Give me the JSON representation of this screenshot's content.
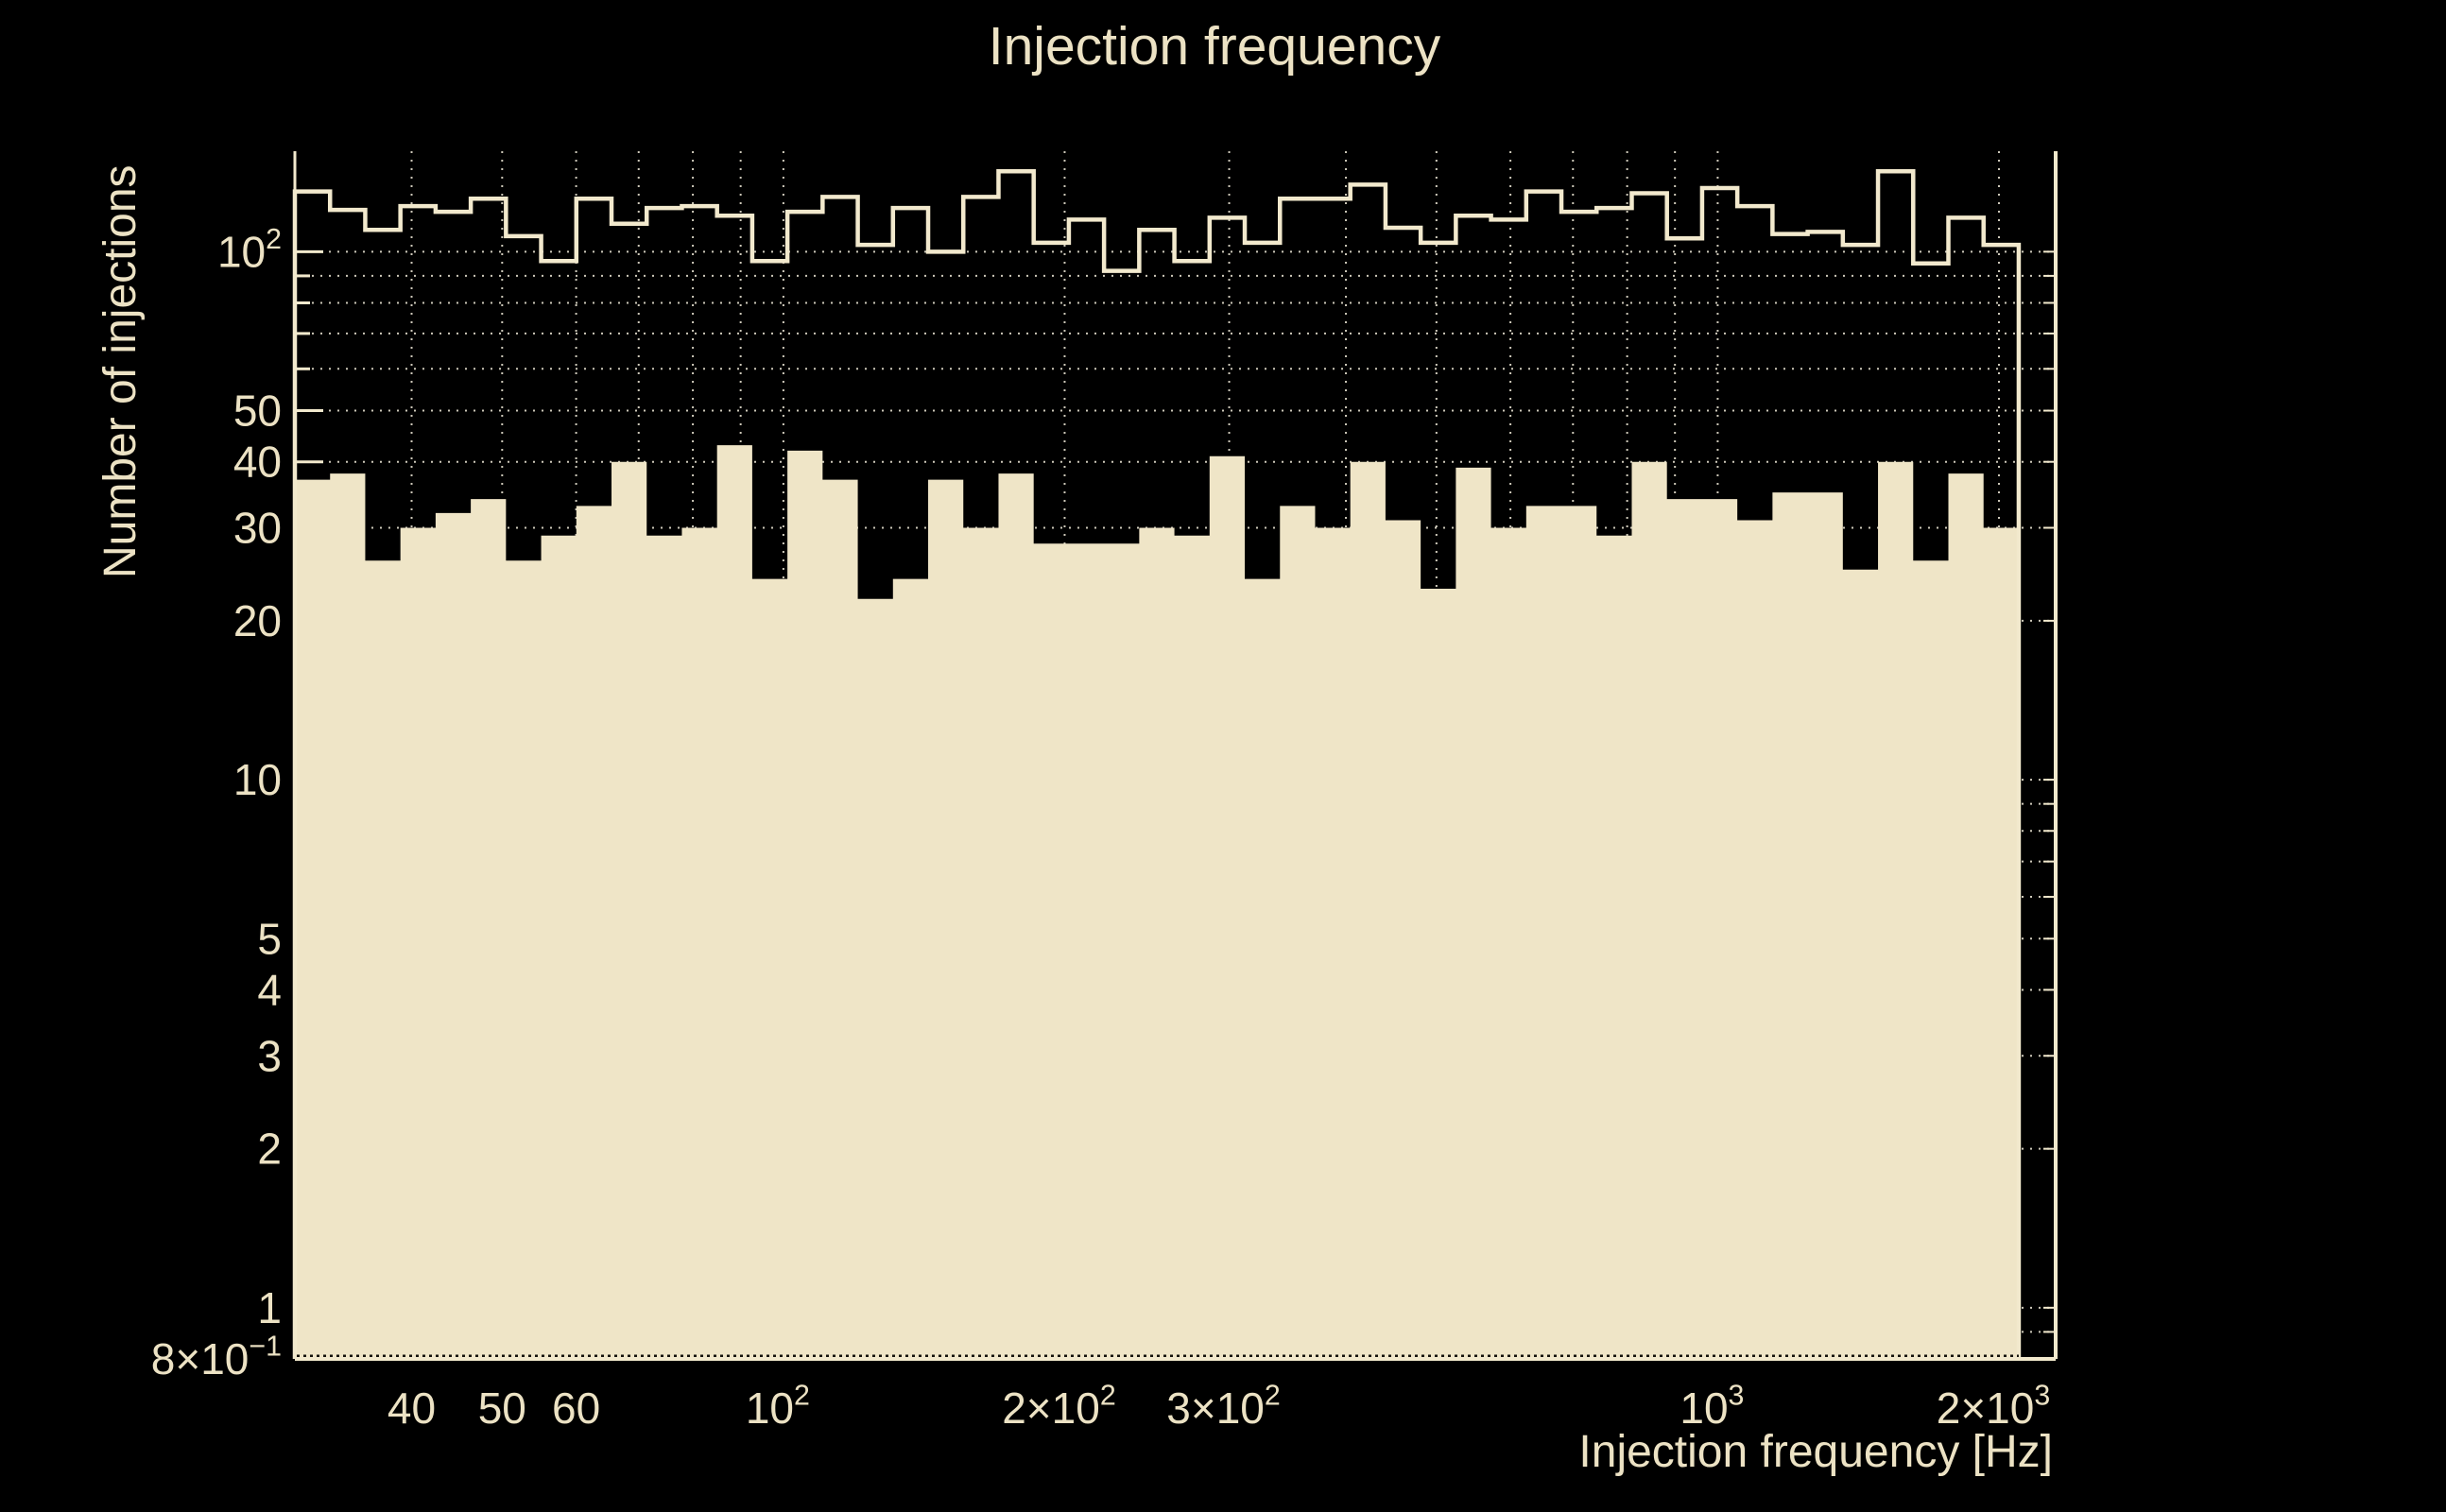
{
  "title": "Injection frequency",
  "axes": {
    "x_label": "Injection frequency [Hz]",
    "y_label": "Number of injections",
    "x_tick_labels": [
      {
        "value": 40,
        "base": "40",
        "sup": ""
      },
      {
        "value": 50,
        "base": "50",
        "sup": ""
      },
      {
        "value": 60,
        "base": "60",
        "sup": ""
      },
      {
        "value": 100,
        "base": "10",
        "sup": "2"
      },
      {
        "value": 200,
        "base": "2×10",
        "sup": "2"
      },
      {
        "value": 300,
        "base": "3×10",
        "sup": "2"
      },
      {
        "value": 1000,
        "base": "10",
        "sup": "3"
      },
      {
        "value": 2000,
        "base": "2×10",
        "sup": "3"
      }
    ],
    "y_tick_labels": [
      {
        "value": 100,
        "base": "10",
        "sup": "2"
      },
      {
        "value": 50,
        "base": "50",
        "sup": ""
      },
      {
        "value": 40,
        "base": "40",
        "sup": ""
      },
      {
        "value": 30,
        "base": "30",
        "sup": ""
      },
      {
        "value": 20,
        "base": "20",
        "sup": ""
      },
      {
        "value": 10,
        "base": "10",
        "sup": ""
      },
      {
        "value": 5,
        "base": "5",
        "sup": ""
      },
      {
        "value": 4,
        "base": "4",
        "sup": ""
      },
      {
        "value": 3,
        "base": "3",
        "sup": ""
      },
      {
        "value": 2,
        "base": "2",
        "sup": ""
      },
      {
        "value": 1,
        "base": "1",
        "sup": ""
      },
      {
        "value": 0.8,
        "base": "8×10",
        "sup": "−1"
      }
    ],
    "x_grid_values": [
      40,
      50,
      60,
      70,
      80,
      90,
      100,
      200,
      300,
      400,
      500,
      600,
      700,
      800,
      900,
      1000,
      2000
    ],
    "y_grid_values": [
      0.9,
      1,
      2,
      3,
      4,
      5,
      6,
      7,
      8,
      9,
      10,
      20,
      30,
      40,
      50,
      60,
      70,
      80,
      90,
      100
    ],
    "y_ticks_visible": [
      40,
      50,
      60,
      70,
      80,
      90,
      100
    ],
    "y_ticks_long": [
      40,
      50,
      100
    ]
  },
  "chart_data": {
    "type": "bar",
    "subtype": "log-log histogram, two series over identical log-spaced bins",
    "x_scale": "log",
    "y_scale": "log",
    "xlim": [
      30,
      2300
    ],
    "ylim": [
      0.8,
      155
    ],
    "bins": {
      "min_hz": 30,
      "max_hz": 2100,
      "count": 49
    },
    "grid": true,
    "legend": "none",
    "series": [
      {
        "name": "total-injections-step-outline",
        "style": "step-outline",
        "values": [
          130,
          120,
          110,
          122,
          119,
          126,
          107,
          96,
          126,
          113,
          121,
          122,
          117,
          96,
          119,
          127,
          103,
          121,
          100,
          127,
          142,
          104,
          115,
          92,
          110,
          96,
          116,
          104,
          126,
          126,
          134,
          111,
          104,
          117,
          115,
          130,
          119,
          121,
          129,
          106,
          132,
          122,
          108,
          109,
          103,
          142,
          95,
          116,
          103
        ]
      },
      {
        "name": "injections-filled",
        "style": "filled",
        "values": [
          37,
          38,
          26,
          30,
          32,
          34,
          26,
          29,
          33,
          40,
          29,
          30,
          43,
          24,
          42,
          37,
          22,
          24,
          37,
          30,
          38,
          28,
          28,
          28,
          30,
          29,
          41,
          24,
          33,
          30,
          40,
          31,
          23,
          39,
          30,
          33,
          33,
          29,
          40,
          34,
          34,
          31,
          35,
          35,
          25,
          40,
          26,
          38,
          30
        ]
      }
    ],
    "title": "Injection frequency",
    "xlabel": "Injection frequency [Hz]",
    "ylabel": "Number of injections"
  },
  "colors": {
    "background": "#000000",
    "cream_fill": "#efe5c7",
    "cream_line": "#f2e9cd",
    "text": "#ece2c4",
    "grid_dots": "#d8d3c3",
    "axis_dark_dots": "#14120c"
  }
}
